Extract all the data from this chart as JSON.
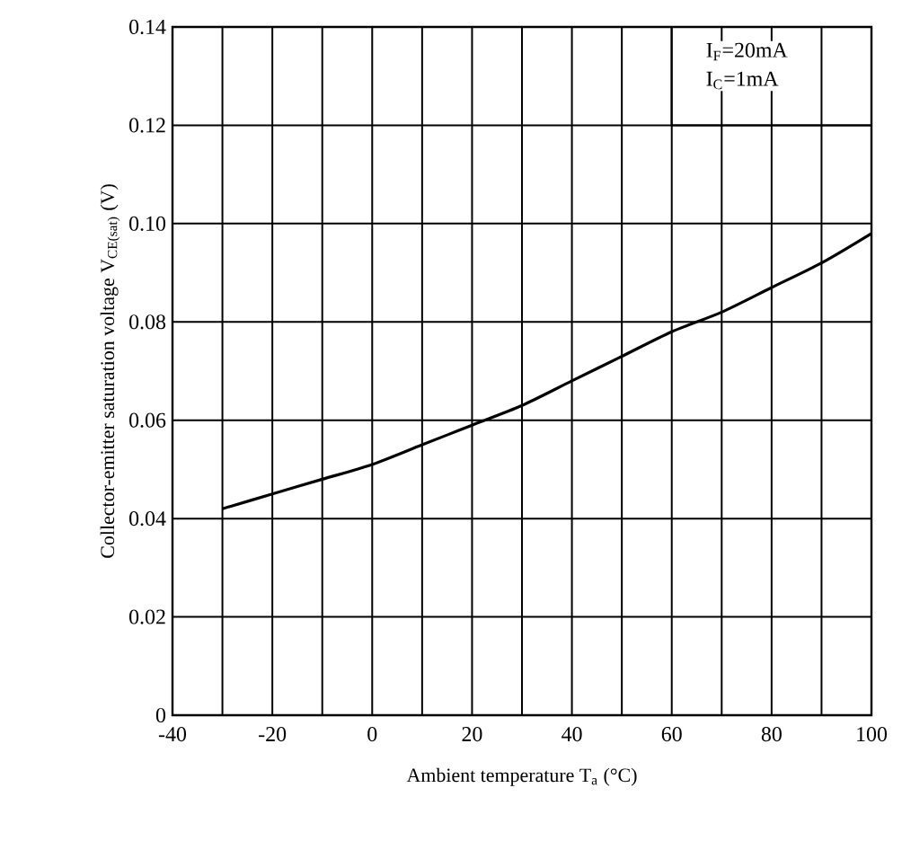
{
  "chart_data": {
    "type": "line",
    "xlabel": "Ambient temperature T$_{a}$ (°C)",
    "ylabel": "Collector-emitter saturation voltage V$_{CE(sat)}$ (V)",
    "annotations": [
      "I$_{F}$=20mA",
      "I$_{C}$=1mA"
    ],
    "x": [
      -30,
      -20,
      -10,
      0,
      10,
      20,
      30,
      40,
      50,
      60,
      70,
      80,
      90,
      100
    ],
    "series": [
      {
        "color": "#000000",
        "values": [
          0.042,
          0.045,
          0.048,
          0.051,
          0.055,
          0.059,
          0.063,
          0.068,
          0.073,
          0.078,
          0.082,
          0.087,
          0.092,
          0.098
        ]
      }
    ],
    "xlim": [
      -40,
      100
    ],
    "xticks": [
      -40,
      {
        "value": -30,
        "label": null
      },
      -20,
      {
        "value": -10,
        "label": null
      },
      0,
      {
        "value": 10,
        "label": null
      },
      20,
      {
        "value": 30,
        "label": null
      },
      40,
      {
        "value": 50,
        "label": null
      },
      60,
      {
        "value": 70,
        "label": null
      },
      80,
      {
        "value": 90,
        "label": null
      },
      100
    ],
    "ylim": [
      0,
      0.14
    ],
    "yticks": [
      0,
      0.02,
      0.04,
      0.06,
      0.08,
      {
        "value": 0.1,
        "label": "0.10"
      },
      0.12,
      0.14
    ],
    "grid": true,
    "line_style": "solid"
  }
}
